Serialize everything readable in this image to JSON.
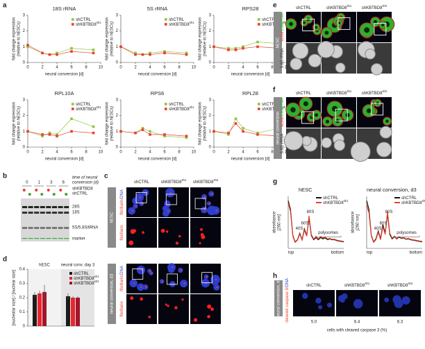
{
  "chart_data": [
    {
      "type": "line",
      "title": "18S rRNA",
      "xlabel": "neural conversion [d]",
      "ylabel": "fold change expression",
      "ylabel_note": "(relative to hESCs)",
      "x": [
        0,
        2,
        3,
        4,
        6,
        9
      ],
      "xlim": [
        0,
        10
      ],
      "xticks": [
        0,
        2,
        4,
        6,
        8,
        10
      ],
      "ylim": [
        0,
        3
      ],
      "yticks": [
        0,
        1,
        2,
        3
      ],
      "markers": true,
      "series": [
        {
          "name": "shCTRL",
          "color": "#8dc63f",
          "values": [
            1,
            0.6,
            0.5,
            0.6,
            0.9,
            0.8
          ]
        },
        {
          "name": "shKBTBD8",
          "sup": "sh1",
          "color": "#e8402c",
          "values": [
            1.1,
            0.6,
            0.5,
            0.5,
            0.7,
            0.6
          ]
        }
      ]
    },
    {
      "type": "line",
      "title": "5S rRNA",
      "xlabel": "neural conversion [d]",
      "ylabel": "fold change expression",
      "ylabel_note": "(relative to hESCs)",
      "x": [
        0,
        2,
        3,
        4,
        6,
        9
      ],
      "xlim": [
        0,
        10
      ],
      "xticks": [
        0,
        2,
        4,
        6,
        8,
        10
      ],
      "ylim": [
        0,
        3
      ],
      "yticks": [
        0,
        1,
        2,
        3
      ],
      "markers": true,
      "series": [
        {
          "name": "shCTRL",
          "color": "#8dc63f",
          "values": [
            1,
            0.6,
            0.5,
            0.6,
            0.7,
            0.6
          ]
        },
        {
          "name": "shKBTBD8",
          "sup": "sh1",
          "color": "#e8402c",
          "values": [
            1,
            0.5,
            0.5,
            0.5,
            0.6,
            0.5
          ]
        }
      ]
    },
    {
      "type": "line",
      "title": "RPS28",
      "xlabel": "neural conversion [d]",
      "ylabel": "fold change expression",
      "ylabel_note": "(relative to hESCs)",
      "x": [
        0,
        2,
        3,
        4,
        6,
        9
      ],
      "xlim": [
        0,
        10
      ],
      "xticks": [
        0,
        2,
        4,
        6,
        8,
        10
      ],
      "ylim": [
        0,
        3
      ],
      "yticks": [
        0,
        1,
        2,
        3
      ],
      "markers": true,
      "series": [
        {
          "name": "shCTRL",
          "color": "#8dc63f",
          "values": [
            1,
            0.9,
            0.9,
            1.0,
            1.3,
            1.2
          ]
        },
        {
          "name": "shKBTBD8",
          "sup": "sh1",
          "color": "#e8402c",
          "values": [
            1,
            0.8,
            0.8,
            0.9,
            1.0,
            0.9
          ]
        }
      ]
    },
    {
      "type": "line",
      "title": "RPL10A",
      "xlabel": "neural conversion [d]",
      "ylabel": "fold change expression",
      "ylabel_note": "(relative to hESCs)",
      "x": [
        0,
        2,
        3,
        4,
        6,
        9
      ],
      "xlim": [
        0,
        10
      ],
      "xticks": [
        0,
        2,
        4,
        6,
        8,
        10
      ],
      "ylim": [
        0,
        3
      ],
      "yticks": [
        0,
        1,
        2,
        3
      ],
      "markers": true,
      "series": [
        {
          "name": "shCTRL",
          "color": "#8dc63f",
          "values": [
            1,
            0.7,
            0.9,
            0.8,
            1.8,
            1.3
          ]
        },
        {
          "name": "shKBTBD8",
          "sup": "sh1",
          "color": "#e8402c",
          "values": [
            1,
            0.8,
            0.8,
            0.7,
            1.0,
            0.9
          ]
        }
      ]
    },
    {
      "type": "line",
      "title": "RPS6",
      "xlabel": "neural conversion [d]",
      "ylabel": "fold change expression",
      "ylabel_note": "(relative to hESCs)",
      "x": [
        0,
        2,
        3,
        4,
        6,
        9
      ],
      "xlim": [
        0,
        10
      ],
      "xticks": [
        0,
        2,
        4,
        6,
        8,
        10
      ],
      "ylim": [
        0,
        3
      ],
      "yticks": [
        0,
        1,
        2,
        3
      ],
      "markers": true,
      "series": [
        {
          "name": "shCTRL",
          "color": "#8dc63f",
          "values": [
            1,
            0.9,
            1.2,
            1.0,
            0.7,
            0.6
          ]
        },
        {
          "name": "shKBTBD8",
          "sup": "sh1",
          "color": "#e8402c",
          "values": [
            1,
            0.9,
            1.1,
            0.8,
            0.8,
            0.7
          ]
        }
      ]
    },
    {
      "type": "line",
      "title": "RPL28",
      "xlabel": "neural conversion [d]",
      "ylabel": "fold change expression",
      "ylabel_note": "(relative to hESCs)",
      "x": [
        0,
        2,
        3,
        4,
        6,
        9
      ],
      "xlim": [
        0,
        10
      ],
      "xticks": [
        0,
        2,
        4,
        6,
        8,
        10
      ],
      "ylim": [
        0,
        3
      ],
      "yticks": [
        0,
        1,
        2,
        3
      ],
      "markers": true,
      "series": [
        {
          "name": "shCTRL",
          "color": "#8dc63f",
          "values": [
            1,
            0.8,
            1.8,
            1.2,
            0.9,
            1.2
          ]
        },
        {
          "name": "shKBTBD8",
          "sup": "sh1",
          "color": "#e8402c",
          "values": [
            1,
            0.9,
            1.5,
            1.0,
            0.8,
            0.7
          ]
        }
      ]
    },
    {
      "type": "bar",
      "ylabel": "[nucleolar size] / [nuclear size]",
      "categories": [
        "hESC",
        "neural conv. day 3"
      ],
      "ylim": [
        0,
        0.4
      ],
      "yticks": [
        0,
        0.1,
        0.2,
        0.3,
        0.4
      ],
      "series": [
        {
          "name": "shCTRL",
          "color": "#1a1a1a",
          "values": [
            0.22,
            0.21
          ],
          "errors": [
            0.02,
            0.02
          ]
        },
        {
          "name": "shKBTBD8",
          "sup": "sh1",
          "color": "#e8262e",
          "values": [
            0.23,
            0.2
          ],
          "errors": [
            0.02,
            0.01
          ]
        },
        {
          "name": "shKBTBD8",
          "sup": "sh2",
          "color": "#a3162a",
          "values": [
            0.24,
            0.2
          ],
          "errors": [
            0.05,
            0.01
          ]
        }
      ]
    },
    {
      "type": "line",
      "title": "hESC",
      "ylabel": "absorbance",
      "ylabel_note": "[260 nm]",
      "xstart": "top",
      "xend": "bottom",
      "annotations": [
        "40S",
        "60S",
        "80S",
        "polysomes"
      ],
      "x": [
        0,
        1,
        2,
        3,
        4,
        5,
        6,
        7,
        8,
        9,
        10,
        11,
        12,
        13,
        14,
        15,
        16,
        17,
        18,
        19,
        20,
        21,
        22,
        23,
        24
      ],
      "xlim": [
        0,
        24
      ],
      "ylim": [
        0,
        1.2
      ],
      "series": [
        {
          "name": "shCTRL",
          "color": "#111111",
          "values": [
            1.1,
            0.9,
            0.3,
            0.15,
            0.2,
            0.35,
            0.2,
            0.45,
            0.3,
            0.7,
            0.3,
            0.2,
            0.25,
            0.2,
            0.25,
            0.22,
            0.24,
            0.2,
            0.22,
            0.2,
            0.2,
            0.18,
            0.17,
            0.16,
            0.15
          ]
        },
        {
          "name": "shKBTBD8",
          "sup": "sh1",
          "color": "#e8402c",
          "values": [
            1.05,
            0.85,
            0.28,
            0.14,
            0.19,
            0.33,
            0.19,
            0.42,
            0.28,
            0.75,
            0.32,
            0.22,
            0.27,
            0.22,
            0.27,
            0.24,
            0.26,
            0.22,
            0.23,
            0.21,
            0.21,
            0.19,
            0.18,
            0.17,
            0.16
          ]
        }
      ]
    },
    {
      "type": "line",
      "title": "neural conversion, d3",
      "ylabel": "absorbance",
      "ylabel_note": "[260 nm]",
      "xstart": "top",
      "xend": "bottom",
      "annotations": [
        "40S",
        "60S",
        "80S",
        "polysomes"
      ],
      "x": [
        0,
        1,
        2,
        3,
        4,
        5,
        6,
        7,
        8,
        9,
        10,
        11,
        12,
        13,
        14,
        15,
        16,
        17,
        18,
        19,
        20,
        21,
        22,
        23,
        24
      ],
      "xlim": [
        0,
        24
      ],
      "ylim": [
        0,
        1.2
      ],
      "series": [
        {
          "name": "shCTRL",
          "color": "#111111",
          "values": [
            1.1,
            0.9,
            0.3,
            0.15,
            0.22,
            0.4,
            0.22,
            0.55,
            0.35,
            0.8,
            0.32,
            0.22,
            0.27,
            0.22,
            0.26,
            0.23,
            0.24,
            0.21,
            0.22,
            0.2,
            0.19,
            0.18,
            0.17,
            0.16,
            0.15
          ]
        },
        {
          "name": "shKBTBD8",
          "sup": "sh1",
          "color": "#e8402c",
          "values": [
            1.0,
            0.82,
            0.28,
            0.14,
            0.2,
            0.37,
            0.2,
            0.5,
            0.32,
            0.85,
            0.35,
            0.24,
            0.28,
            0.23,
            0.27,
            0.24,
            0.25,
            0.22,
            0.23,
            0.21,
            0.2,
            0.19,
            0.18,
            0.17,
            0.16
          ]
        }
      ]
    }
  ],
  "figure": {
    "panel_labels": [
      "a",
      "b",
      "c",
      "d",
      "e",
      "f",
      "g",
      "h"
    ],
    "conditions": [
      {
        "name": "shCTRL"
      },
      {
        "name": "shKBTBD8",
        "sup": "sh1"
      },
      {
        "name": "shKBTBD8",
        "sup": "sh2"
      }
    ],
    "b": {
      "timepoints": [
        "0",
        "1",
        "3",
        "6"
      ],
      "time_label": [
        "time of neural",
        "conversion (d)"
      ],
      "legend": [
        "shKBTBD8",
        "shCTRL"
      ],
      "bands": [
        "28S",
        "18S",
        "5S/5.8S/tRNA",
        "marker"
      ]
    },
    "c": {
      "rows": [
        "hESC",
        "neural conversion, d3"
      ],
      "channels": [
        [
          "fibrillarin/",
          "DNA"
        ],
        [
          "fibrillarin"
        ]
      ]
    },
    "e": {
      "row": "hESC",
      "channels": [
        [
          "actin/",
          "5.8SrRNA"
        ],
        [
          "5.8S rRNA"
        ]
      ]
    },
    "f": {
      "row": "neural conversion",
      "channels": [
        [
          "actin/",
          "5.8SrRNA"
        ],
        [
          "5.8S rRNA"
        ]
      ]
    },
    "h": {
      "row": "neural conversion, d3",
      "channel": [
        "cleaved caspase 3/",
        "DNA"
      ],
      "values": [
        "5.0",
        "6.4",
        "6.3"
      ],
      "caption": "cells with cleaved caspase 3 (%)"
    }
  }
}
